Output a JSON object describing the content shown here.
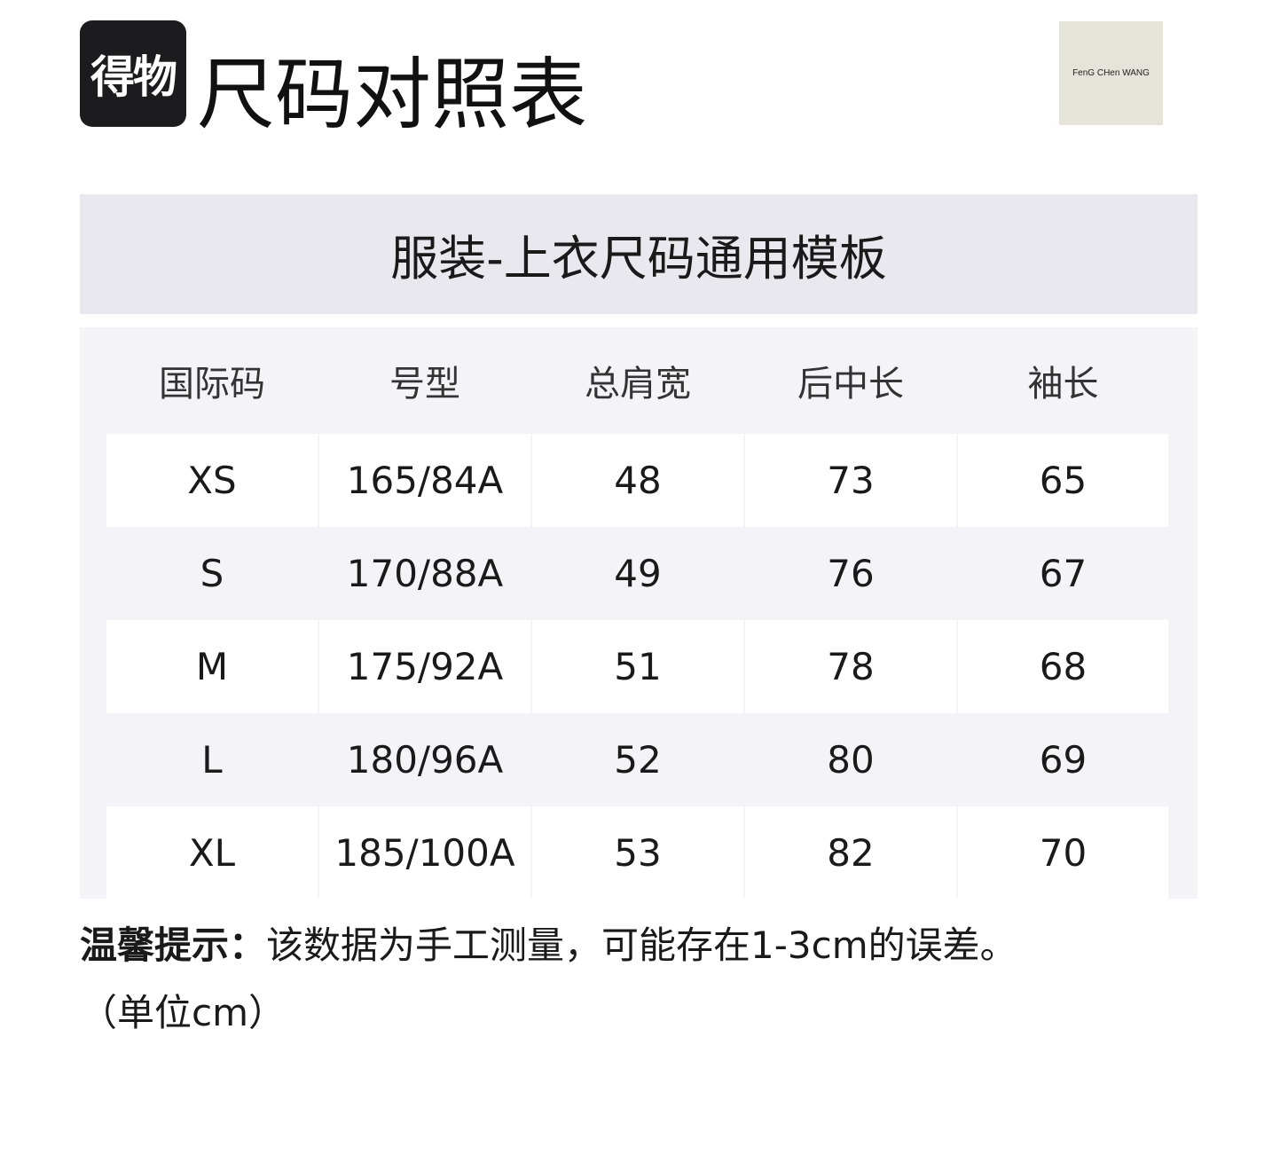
{
  "logo": "得物",
  "title": "尺码对照表",
  "brand": "FenG CHen WANG",
  "band_title": "服装-上衣尺码通用模板",
  "table": {
    "headers": [
      "国际码",
      "号型",
      "总肩宽",
      "后中长",
      "袖长"
    ],
    "rows": [
      [
        "XS",
        "165/84A",
        "48",
        "73",
        "65"
      ],
      [
        "S",
        "170/88A",
        "49",
        "76",
        "67"
      ],
      [
        "M",
        "175/92A",
        "51",
        "78",
        "68"
      ],
      [
        "L",
        "180/96A",
        "52",
        "80",
        "69"
      ],
      [
        "XL",
        "185/100A",
        "53",
        "82",
        "70"
      ]
    ]
  },
  "note": {
    "label": "温馨提示：",
    "text": "该数据为手工测量，可能存在1-3cm的误差。",
    "unit": "（单位cm）"
  }
}
